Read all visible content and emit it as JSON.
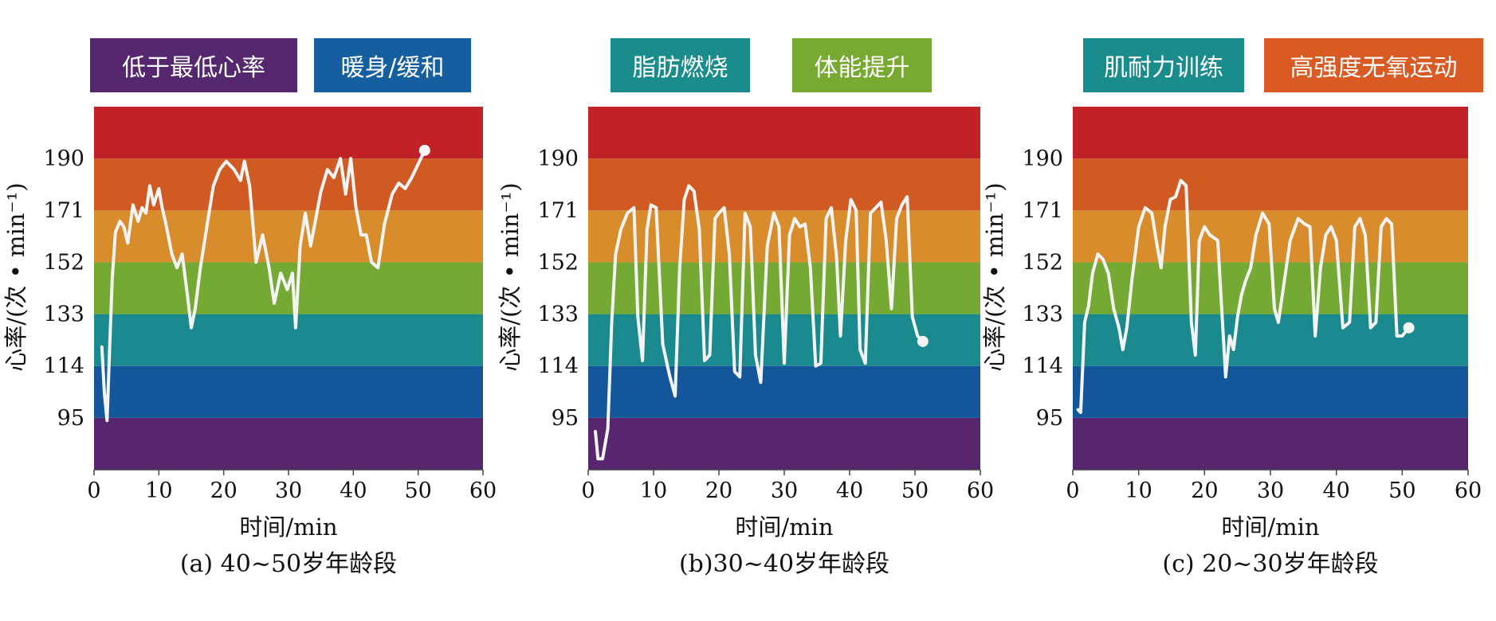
{
  "legend": [
    {
      "label": "低于最低心率",
      "color": "#55276f"
    },
    {
      "label": "暖身/缓和",
      "color": "#155ea0"
    },
    {
      "label": "脂肪燃烧",
      "color": "#1a8c8c"
    },
    {
      "label": "体能提升",
      "color": "#78aa32"
    },
    {
      "label": "肌耐力训练",
      "color": "#1a8c8c"
    },
    {
      "label": "高强度无氧运动",
      "color": "#d95a22"
    }
  ],
  "zone_colors": [
    "#57266f",
    "#13569a",
    "#1a8a8e",
    "#74aa33",
    "#d88c2b",
    "#d05a22",
    "#c02228"
  ],
  "chart_data": [
    {
      "type": "line",
      "caption": "(a) 40~50岁年龄段",
      "xlabel": "时间/min",
      "ylabel": "心率/(次 • min⁻¹)",
      "xlim": [
        0,
        60
      ],
      "ylim": [
        76,
        209
      ],
      "xticks": [
        "0",
        "10",
        "20",
        "30",
        "40",
        "50",
        "60"
      ],
      "yticks": [
        "95",
        "114",
        "133",
        "152",
        "171",
        "190"
      ],
      "series": [
        {
          "x": [
            1.2,
            1.6,
            2.0,
            2.4,
            2.8,
            3.3,
            4,
            4.6,
            5.2,
            6,
            6.8,
            7.4,
            8,
            8.6,
            9.2,
            10,
            10.5,
            11,
            12,
            12.8,
            13.6,
            14.4,
            15,
            15.6,
            16.4,
            17.4,
            18.4,
            19.4,
            20.4,
            21.6,
            22.6,
            23.2,
            24,
            25,
            26,
            27,
            27.8,
            28.8,
            29.8,
            30.6,
            31.1,
            31.8,
            32.6,
            33.4,
            34.2,
            35,
            36,
            37,
            38,
            38.8,
            39.6,
            40.4,
            41.2,
            42,
            42.8,
            43.8,
            44.8,
            46,
            47,
            48,
            49,
            50,
            51
          ],
          "y": [
            121,
            104,
            94,
            120,
            146,
            163,
            167,
            165,
            159,
            173,
            167,
            172,
            170,
            180,
            173,
            179,
            172,
            167,
            155,
            150,
            155,
            140,
            128,
            135,
            150,
            165,
            180,
            186,
            189,
            186,
            182,
            189,
            180,
            152,
            162,
            150,
            137,
            148,
            142,
            148,
            128,
            158,
            170,
            158,
            168,
            178,
            186,
            183,
            190,
            177,
            190,
            172,
            162,
            162,
            152,
            150,
            166,
            177,
            181,
            179,
            183,
            188,
            193
          ]
        }
      ]
    },
    {
      "type": "line",
      "caption": "(b)30~40岁年龄段",
      "xlabel": "时间/min",
      "ylabel": "心率/(次 • min⁻¹)",
      "xlim": [
        0,
        60
      ],
      "ylim": [
        76,
        209
      ],
      "xticks": [
        "0",
        "10",
        "20",
        "30",
        "40",
        "50",
        "60"
      ],
      "yticks": [
        "95",
        "114",
        "133",
        "152",
        "171",
        "190"
      ],
      "series": [
        {
          "x": [
            1.1,
            1.5,
            2.2,
            3,
            3.6,
            4.2,
            5,
            6,
            7,
            7.6,
            8.3,
            9,
            9.6,
            10.4,
            11.4,
            12.5,
            13.3,
            14,
            14.7,
            15.4,
            16.2,
            17,
            17.8,
            18.6,
            19.4,
            20,
            20.8,
            21.6,
            22.4,
            23.2,
            24,
            24.8,
            25.6,
            26.4,
            27.4,
            28.4,
            29.2,
            30,
            30.8,
            31.6,
            32.4,
            33.2,
            34,
            34.8,
            35.6,
            36.4,
            37.2,
            38,
            38.6,
            39.4,
            40.2,
            41,
            41.6,
            42.4,
            43.2,
            44,
            44.8,
            45.6,
            46.4,
            47.2,
            48,
            48.8,
            49.6,
            50.4,
            51.2
          ],
          "y": [
            90,
            80,
            80,
            91,
            130,
            155,
            164,
            170,
            172,
            132,
            116,
            164,
            173,
            172,
            122,
            110,
            103,
            150,
            175,
            180,
            178,
            164,
            116,
            118,
            168,
            170,
            172,
            155,
            112,
            110,
            170,
            165,
            118,
            108,
            158,
            170,
            165,
            115,
            162,
            168,
            165,
            166,
            150,
            114,
            115,
            168,
            172,
            154,
            125,
            160,
            175,
            171,
            120,
            115,
            170,
            172,
            174,
            160,
            135,
            168,
            173,
            176,
            132,
            125,
            123
          ]
        }
      ]
    },
    {
      "type": "line",
      "caption": "(c) 20~30岁年龄段",
      "xlabel": "时间/min",
      "ylabel": "心率/(次 • min⁻¹)",
      "xlim": [
        0,
        60
      ],
      "ylim": [
        76,
        209
      ],
      "xticks": [
        "0",
        "10",
        "20",
        "30",
        "40",
        "50",
        "60"
      ],
      "yticks": [
        "95",
        "114",
        "133",
        "152",
        "171",
        "190"
      ],
      "series": [
        {
          "x": [
            0.8,
            1.2,
            1.8,
            2.4,
            3,
            3.8,
            4.6,
            5.4,
            6.2,
            7,
            7.6,
            8.2,
            9,
            10,
            11,
            12,
            12.8,
            13.4,
            14,
            14.8,
            15.6,
            16.4,
            17.2,
            18,
            18.6,
            19.2,
            20,
            20.8,
            22,
            23.2,
            23.8,
            24.4,
            25,
            25.6,
            26.2,
            27,
            27.8,
            28.8,
            29.8,
            30.6,
            31.2,
            31.8,
            32.4,
            33,
            34.2,
            35.2,
            36,
            36.8,
            37.6,
            38.4,
            39.2,
            40,
            41,
            42,
            42.8,
            43.6,
            44.4,
            45.2,
            46,
            46.8,
            47.6,
            48.4,
            49.2,
            50,
            51
          ],
          "y": [
            98,
            97,
            130,
            136,
            148,
            155,
            153,
            148,
            135,
            128,
            120,
            128,
            146,
            165,
            172,
            170,
            158,
            150,
            165,
            175,
            176,
            182,
            180,
            130,
            118,
            160,
            165,
            162,
            160,
            110,
            125,
            120,
            132,
            140,
            145,
            150,
            162,
            170,
            166,
            135,
            130,
            140,
            150,
            160,
            168,
            166,
            165,
            125,
            150,
            162,
            165,
            160,
            128,
            130,
            165,
            168,
            162,
            128,
            130,
            165,
            168,
            166,
            125,
            125,
            128
          ]
        }
      ]
    }
  ]
}
